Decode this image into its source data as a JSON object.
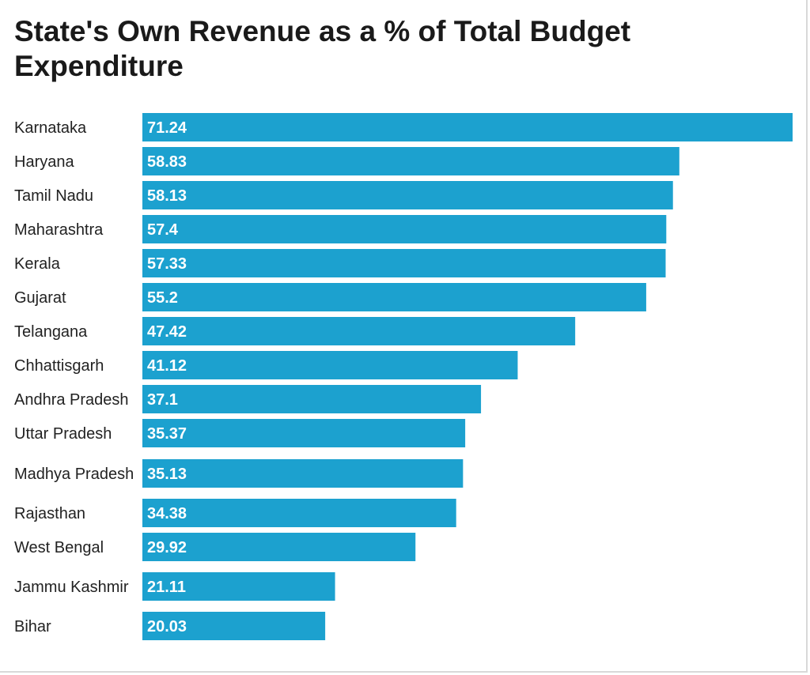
{
  "chart_data": {
    "type": "bar",
    "orientation": "horizontal",
    "title": "State's Own Revenue as a % of Total Budget Expenditure",
    "xlabel": "",
    "ylabel": "",
    "xlim": [
      0,
      71.24
    ],
    "grid": false,
    "bar_color": "#1ca1cf",
    "value_label_color": "#ffffff",
    "categories": [
      "Karnataka",
      "Haryana",
      "Tamil Nadu",
      "Maharashtra",
      "Kerala",
      "Gujarat",
      "Telangana",
      "Chhattisgarh",
      "Andhra Pradesh",
      "Uttar Pradesh",
      "Madhya Pradesh",
      "Rajasthan",
      "West Bengal",
      "Jammu Kashmir",
      "Bihar"
    ],
    "values": [
      71.24,
      58.83,
      58.13,
      57.4,
      57.33,
      55.2,
      47.42,
      41.12,
      37.1,
      35.37,
      35.13,
      34.38,
      29.92,
      21.11,
      20.03
    ],
    "value_labels": [
      "71.24",
      "58.83",
      "58.13",
      "57.4",
      "57.33",
      "55.2",
      "47.42",
      "41.12",
      "37.1",
      "35.37",
      "35.13",
      "34.38",
      "29.92",
      "21.11",
      "20.03"
    ]
  }
}
